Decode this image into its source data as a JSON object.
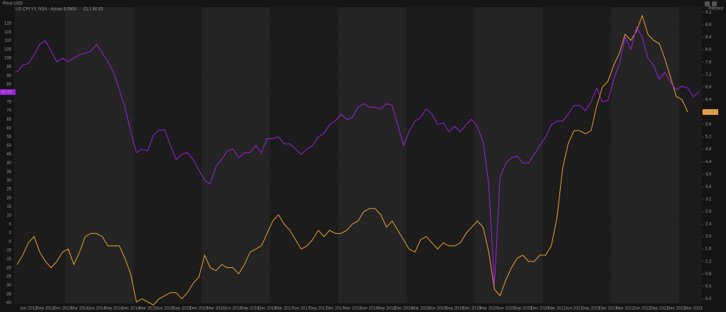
{
  "chart_data": {
    "type": "line",
    "y_label": "Price USD",
    "y2_label": "Percent",
    "legend": "upper left",
    "grid": true,
    "categories": [
      null,
      null,
      "Jun 2013",
      null,
      null,
      "Sep 2013",
      null,
      null,
      "Dec 2013",
      null,
      null,
      "Mar 2014",
      null,
      null,
      "Jun 2014",
      null,
      null,
      "Sep 2014",
      null,
      null,
      "Dec 2014",
      null,
      null,
      "Mar 2015",
      null,
      null,
      "Jun 2015",
      null,
      null,
      "Sep 2015",
      null,
      null,
      "Dec 2015",
      null,
      null,
      "Mar 2016",
      null,
      null,
      "Jun 2016",
      null,
      null,
      "Sep 2016",
      null,
      null,
      "Dec 2016",
      null,
      null,
      "Mar 2017",
      null,
      null,
      "Jun 2017",
      null,
      null,
      "Sep 2017",
      null,
      null,
      "Dec 2017",
      null,
      null,
      "Mar 2018",
      null,
      null,
      "Jun 2018",
      null,
      null,
      "Sep 2018",
      null,
      null,
      "Dec 2018",
      null,
      null,
      "Mar 2019",
      null,
      null,
      "Jun 2019",
      null,
      null,
      "Sep 2019",
      null,
      null,
      "Dec 2019",
      null,
      null,
      "Mar 2020",
      null,
      null,
      "Jun 2020",
      null,
      null,
      "Sep 2020",
      null,
      null,
      "Dec 2020",
      null,
      null,
      "Mar 2021",
      null,
      null,
      "Jun 2021",
      null,
      null,
      "Sep 2021",
      null,
      null,
      "Dec 2021",
      null,
      null,
      "Mar 2022",
      null,
      null,
      "Jun 2022",
      null,
      null,
      "Sep 2022",
      null,
      null,
      "Dec 2022",
      null,
      null,
      "Mar 2023",
      null
    ],
    "series": [
      {
        "name": "US CPI YY, NSA - Actual 6.0000",
        "color": "#f0a030",
        "axis": "y2",
        "values": [
          1.1,
          1.4,
          1.8,
          2.0,
          1.5,
          1.2,
          1.0,
          1.2,
          1.5,
          1.6,
          1.1,
          1.5,
          2.0,
          2.1,
          2.1,
          2.0,
          1.7,
          1.7,
          1.7,
          1.3,
          0.8,
          -0.1,
          0.0,
          -0.1,
          -0.2,
          0.0,
          0.1,
          0.2,
          0.2,
          0.0,
          0.2,
          0.5,
          0.7,
          1.4,
          1.0,
          0.9,
          1.1,
          1.0,
          1.0,
          0.8,
          1.1,
          1.5,
          1.6,
          1.7,
          2.1,
          2.5,
          2.7,
          2.4,
          2.2,
          1.9,
          1.6,
          1.7,
          1.9,
          2.2,
          2.0,
          2.2,
          2.1,
          2.1,
          2.2,
          2.4,
          2.5,
          2.8,
          2.9,
          2.9,
          2.7,
          2.3,
          2.5,
          2.2,
          1.9,
          1.6,
          1.5,
          1.9,
          2.0,
          1.8,
          1.6,
          1.8,
          1.7,
          1.7,
          1.8,
          2.1,
          2.3,
          2.5,
          2.3,
          1.5,
          0.3,
          0.1,
          0.6,
          1.0,
          1.3,
          1.4,
          1.2,
          1.2,
          1.4,
          1.4,
          1.7,
          2.6,
          4.2,
          5.0,
          5.4,
          5.4,
          5.3,
          5.4,
          6.2,
          6.8,
          7.0,
          7.5,
          7.9,
          8.5,
          8.3,
          8.6,
          9.1,
          8.5,
          8.3,
          8.2,
          7.7,
          7.1,
          6.5,
          6.4,
          6.0,
          null,
          null
        ]
      },
      {
        "name": "CL1 80.63",
        "color": "#a020e0",
        "values": [
          92,
          96,
          97,
          102,
          108,
          110,
          104,
          98,
          100,
          98,
          100,
          102,
          103,
          104,
          108,
          103,
          98,
          92,
          82,
          72,
          58,
          46,
          48,
          47,
          56,
          59,
          59,
          50,
          42,
          45,
          46,
          42,
          36,
          30,
          28,
          38,
          42,
          47,
          48,
          43,
          46,
          46,
          50,
          46,
          54,
          54,
          55,
          51,
          51,
          48,
          45,
          48,
          50,
          55,
          57,
          62,
          64,
          68,
          65,
          66,
          72,
          74,
          72,
          72,
          71,
          74,
          73,
          62,
          50,
          58,
          64,
          66,
          71,
          68,
          62,
          63,
          58,
          61,
          58,
          62,
          65,
          61,
          52,
          28,
          -30,
          32,
          40,
          43,
          44,
          40,
          40,
          45,
          50,
          55,
          62,
          64,
          64,
          68,
          73,
          73,
          70,
          75,
          83,
          75,
          76,
          88,
          97,
          112,
          105,
          118,
          112,
          100,
          96,
          88,
          92,
          86,
          82,
          84,
          83,
          78,
          81
        ]
      }
    ],
    "ylim": [
      -40.4,
      129.3
    ],
    "yticks": [
      -40,
      -35,
      -30,
      -25,
      -20,
      -15,
      -10,
      -5,
      0,
      5,
      10,
      15,
      20,
      25,
      30,
      35,
      40,
      45,
      50,
      55,
      60,
      65,
      70,
      75,
      80,
      85,
      90,
      95,
      100,
      105,
      110,
      115,
      120
    ],
    "y2lim": [
      -0.15,
      9.37
    ],
    "y2ticks": [
      {
        "value": 0,
        "label": "0.0"
      },
      0.4,
      0.8,
      1.2,
      1.6,
      {
        "value": 2,
        "label": "2.0"
      },
      2.4,
      2.8,
      3.2,
      3.6,
      {
        "value": 4,
        "label": "4.0"
      },
      4.4,
      4.8,
      5.2,
      5.6,
      {
        "value": 6,
        "label": "6.0"
      },
      6.4,
      6.8,
      7.2,
      7.6,
      {
        "value": 8,
        "label": "8.0"
      },
      8.4,
      8.8,
      9.2
    ],
    "annotations": [
      {
        "text": "80.63",
        "value": 80.63,
        "axis": "y",
        "color": "#a020e0"
      },
      {
        "text": "6.0000",
        "value": 6,
        "axis": "y2",
        "color": "#f0a030"
      }
    ]
  }
}
